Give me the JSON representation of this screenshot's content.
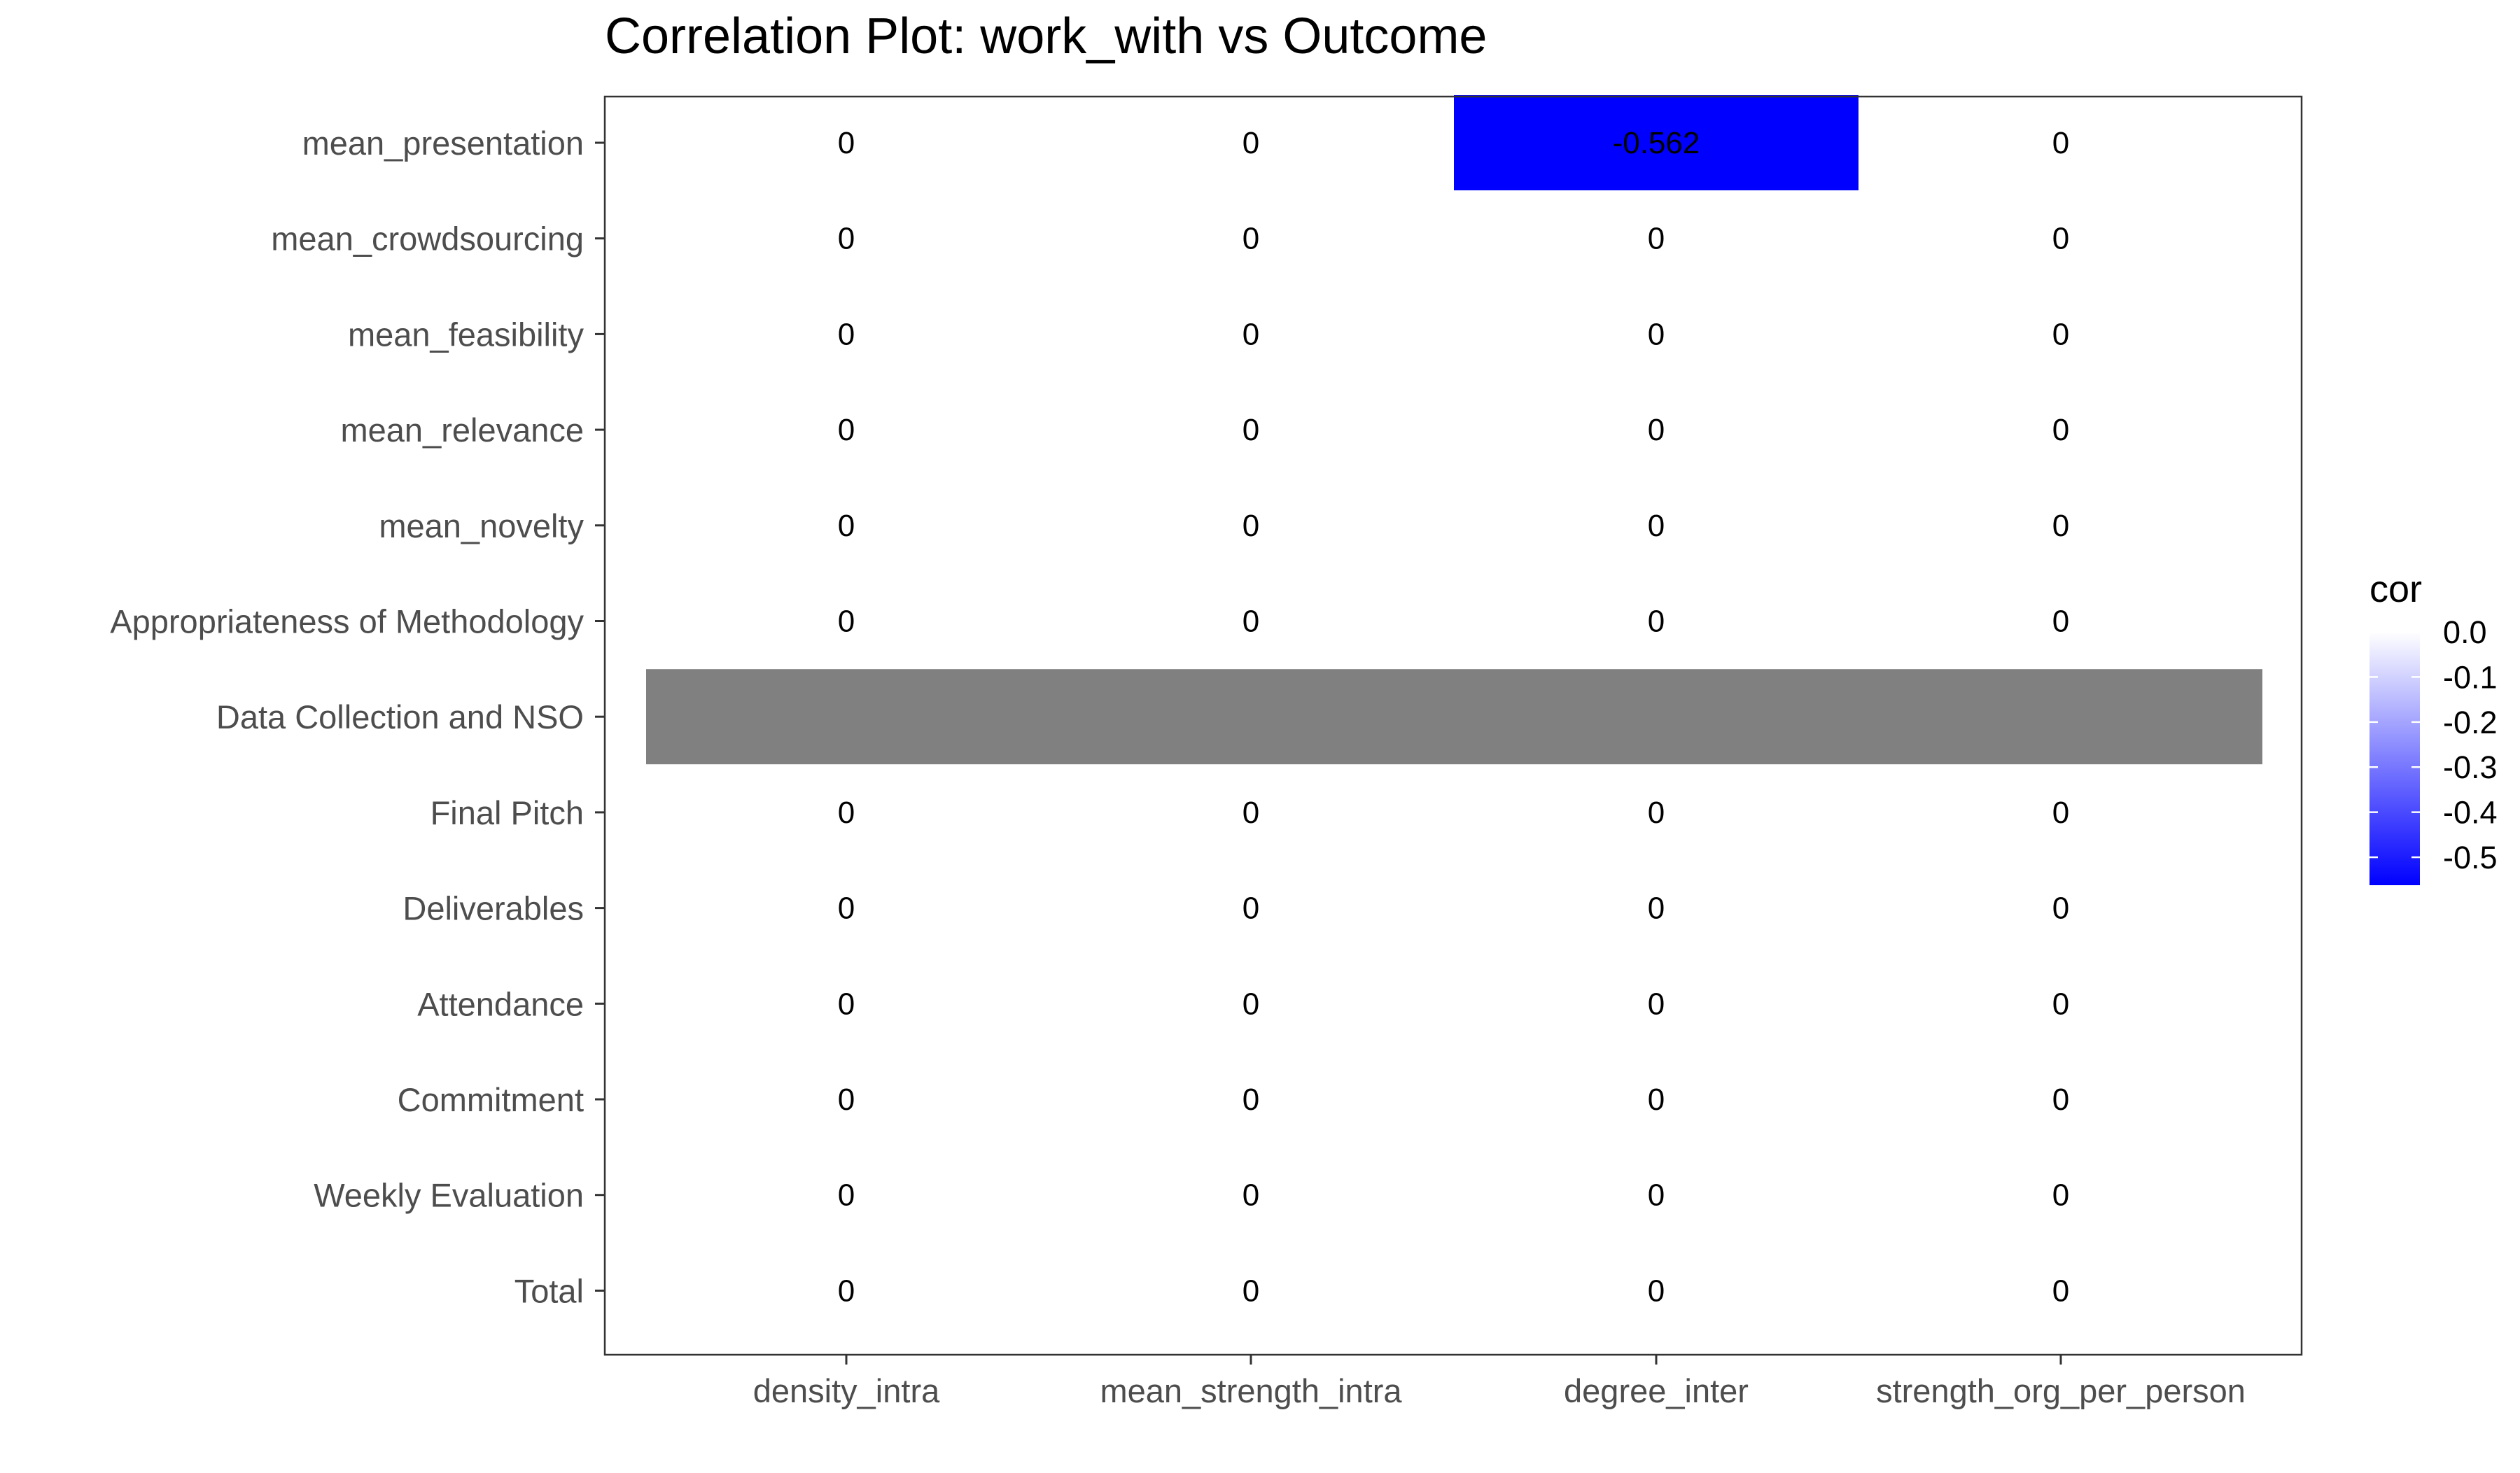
{
  "chart_data": {
    "type": "heatmap",
    "title": "Correlation Plot: work_with vs Outcome",
    "xlabel": "",
    "ylabel": "",
    "x_categories": [
      "density_intra",
      "mean_strength_intra",
      "degree_inter",
      "strength_org_per_person"
    ],
    "y_categories": [
      "mean_presentation",
      "mean_crowdsourcing",
      "mean_feasibility",
      "mean_relevance",
      "mean_novelty",
      "Appropriateness of Methodology",
      "Data Collection and NSO",
      "Final Pitch",
      "Deliverables",
      "Attendance",
      "Commitment",
      "Weekly Evaluation",
      "Total"
    ],
    "values": [
      [
        0,
        0,
        -0.562,
        0
      ],
      [
        0,
        0,
        0,
        0
      ],
      [
        0,
        0,
        0,
        0
      ],
      [
        0,
        0,
        0,
        0
      ],
      [
        0,
        0,
        0,
        0
      ],
      [
        0,
        0,
        0,
        0
      ],
      [
        null,
        null,
        null,
        null
      ],
      [
        0,
        0,
        0,
        0
      ],
      [
        0,
        0,
        0,
        0
      ],
      [
        0,
        0,
        0,
        0
      ],
      [
        0,
        0,
        0,
        0
      ],
      [
        0,
        0,
        0,
        0
      ],
      [
        0,
        0,
        0,
        0
      ]
    ],
    "cell_labels": [
      [
        "0",
        "0",
        "-0.562",
        "0"
      ],
      [
        "0",
        "0",
        "0",
        "0"
      ],
      [
        "0",
        "0",
        "0",
        "0"
      ],
      [
        "0",
        "0",
        "0",
        "0"
      ],
      [
        "0",
        "0",
        "0",
        "0"
      ],
      [
        "0",
        "0",
        "0",
        "0"
      ],
      [
        "",
        "",
        "",
        ""
      ],
      [
        "0",
        "0",
        "0",
        "0"
      ],
      [
        "0",
        "0",
        "0",
        "0"
      ],
      [
        "0",
        "0",
        "0",
        "0"
      ],
      [
        "0",
        "0",
        "0",
        "0"
      ],
      [
        "0",
        "0",
        "0",
        "0"
      ],
      [
        "0",
        "0",
        "0",
        "0"
      ]
    ],
    "legend": {
      "title": "cor",
      "ticks": [
        "0.0",
        "-0.1",
        "-0.2",
        "-0.3",
        "-0.4",
        "-0.5"
      ],
      "tick_values": [
        0.0,
        -0.1,
        -0.2,
        -0.3,
        -0.4,
        -0.5
      ],
      "range": [
        -0.562,
        0.0
      ],
      "low_color": "#0000ff",
      "high_color": "#ffffff",
      "position": "right"
    },
    "na_color": "#808080",
    "grid": false
  }
}
